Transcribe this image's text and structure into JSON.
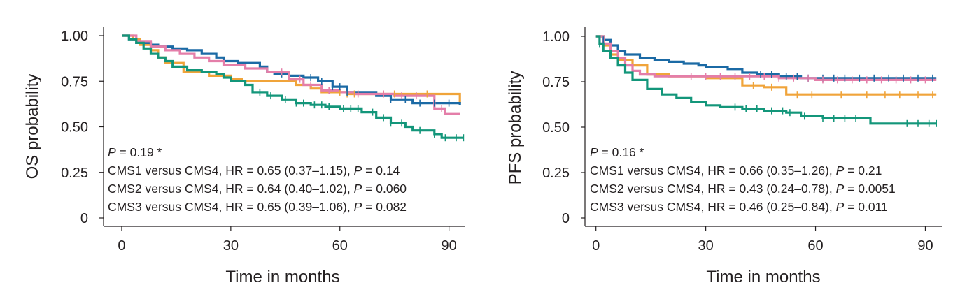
{
  "colors": {
    "CMS1": "#f0a43a",
    "CMS2": "#1b6aa5",
    "CMS3": "#e47ea9",
    "CMS4": "#13967a",
    "axis": "#231f20"
  },
  "chart_data": [
    {
      "type": "line",
      "subtype": "kaplan-meier",
      "title": "",
      "xlabel": "Time in months",
      "ylabel": "OS probability",
      "xlim": [
        -5,
        94.5
      ],
      "ylim": [
        0,
        1
      ],
      "xticks": [
        0,
        30,
        60,
        90
      ],
      "xtick_labels": [
        "0",
        "30",
        "60",
        "90"
      ],
      "yticks": [
        0,
        0.25,
        0.5,
        0.75,
        1.0
      ],
      "ytick_labels": [
        "0",
        "0.25",
        "0.50",
        "0.75",
        "1.00"
      ],
      "annotation": {
        "p_label": "P",
        "p_value": " = 0.19 *",
        "hr_lines": [
          {
            "text": "CMS1 versus CMS4, HR = 0.65 (0.37–1.15), ",
            "p_label": "P",
            "p_value": " = 0.14"
          },
          {
            "text": "CMS2 versus CMS4, HR = 0.64 (0.40–1.02), ",
            "p_label": "P",
            "p_value": " = 0.060"
          },
          {
            "text": "CMS3 versus CMS4, HR = 0.65 (0.39–1.06), ",
            "p_label": "P",
            "p_value": " = 0.082"
          }
        ]
      },
      "series": [
        {
          "name": "CMS1",
          "color_key": "CMS1",
          "x": [
            0,
            3,
            5,
            8,
            10,
            12,
            17,
            24,
            28,
            30,
            33,
            46,
            48,
            52,
            55,
            62,
            66,
            70,
            78,
            84,
            90,
            93
          ],
          "y": [
            1.0,
            0.98,
            0.95,
            0.92,
            0.88,
            0.85,
            0.8,
            0.78,
            0.78,
            0.76,
            0.75,
            0.75,
            0.73,
            0.71,
            0.69,
            0.68,
            0.68,
            0.68,
            0.68,
            0.68,
            0.68,
            0.63
          ],
          "censor_x": [
            60,
            62,
            64,
            72,
            75,
            84
          ]
        },
        {
          "name": "CMS2",
          "color_key": "CMS2",
          "x": [
            0,
            2,
            4,
            8,
            10,
            12,
            14,
            18,
            22,
            26,
            28,
            32,
            38,
            40,
            42,
            46,
            50,
            54,
            58,
            62,
            70,
            74,
            80,
            86,
            90,
            93
          ],
          "y": [
            1.0,
            0.98,
            0.96,
            0.95,
            0.94,
            0.94,
            0.93,
            0.92,
            0.9,
            0.88,
            0.86,
            0.85,
            0.83,
            0.8,
            0.79,
            0.78,
            0.77,
            0.75,
            0.72,
            0.69,
            0.67,
            0.65,
            0.63,
            0.63,
            0.63,
            0.62
          ],
          "censor_x": [
            44,
            52,
            55,
            58,
            60,
            62,
            74,
            78,
            82,
            86,
            90
          ]
        },
        {
          "name": "CMS3",
          "color_key": "CMS3",
          "x": [
            0,
            4,
            8,
            12,
            16,
            20,
            24,
            28,
            34,
            40,
            46,
            50,
            55,
            60,
            64,
            70,
            75,
            84,
            86,
            89,
            93
          ],
          "y": [
            1.0,
            0.97,
            0.94,
            0.92,
            0.9,
            0.88,
            0.86,
            0.84,
            0.82,
            0.8,
            0.76,
            0.73,
            0.7,
            0.69,
            0.68,
            0.68,
            0.67,
            0.67,
            0.6,
            0.57,
            0.57
          ],
          "censor_x": [
            44,
            49,
            52,
            57,
            65,
            72,
            77,
            81,
            88
          ]
        },
        {
          "name": "CMS4",
          "color_key": "CMS4",
          "x": [
            0,
            2,
            4,
            6,
            8,
            10,
            12,
            14,
            18,
            22,
            26,
            28,
            30,
            34,
            36,
            40,
            44,
            48,
            52,
            56,
            60,
            64,
            66,
            70,
            74,
            78,
            80,
            84,
            86,
            88,
            92,
            94
          ],
          "y": [
            1.0,
            0.98,
            0.96,
            0.93,
            0.9,
            0.88,
            0.86,
            0.83,
            0.81,
            0.8,
            0.79,
            0.77,
            0.75,
            0.73,
            0.69,
            0.67,
            0.65,
            0.63,
            0.62,
            0.61,
            0.6,
            0.6,
            0.58,
            0.55,
            0.52,
            0.5,
            0.48,
            0.48,
            0.46,
            0.44,
            0.44,
            0.44
          ],
          "censor_x": [
            38,
            41,
            45,
            48,
            50,
            53,
            55,
            57,
            61,
            63,
            65,
            69,
            72,
            74,
            77,
            82,
            86,
            89,
            92,
            94
          ]
        }
      ]
    },
    {
      "type": "line",
      "subtype": "kaplan-meier",
      "title": "",
      "xlabel": "Time in months",
      "ylabel": "PFS probability",
      "xlim": [
        -3,
        94.5
      ],
      "ylim": [
        0,
        1
      ],
      "xticks": [
        0,
        30,
        60,
        90
      ],
      "xtick_labels": [
        "0",
        "30",
        "60",
        "90"
      ],
      "yticks": [
        0,
        0.25,
        0.5,
        0.75,
        1.0
      ],
      "ytick_labels": [
        "0",
        "0.25",
        "0.50",
        "0.75",
        "1.00"
      ],
      "annotation": {
        "p_label": "P",
        "p_value": " = 0.16 *",
        "hr_lines": [
          {
            "text": "CMS1 versus CMS4, HR = 0.66 (0.35–1.26), ",
            "p_label": "P",
            "p_value": " = 0.21"
          },
          {
            "text": "CMS2 versus CMS4, HR = 0.43 (0.24–0.78), ",
            "p_label": "P",
            "p_value": " = 0.0051"
          },
          {
            "text": "CMS3 versus CMS4, HR = 0.46 (0.25–0.84), ",
            "p_label": "P",
            "p_value": " = 0.011"
          }
        ]
      },
      "series": [
        {
          "name": "CMS1",
          "color_key": "CMS1",
          "x": [
            0,
            2,
            4,
            6,
            10,
            14,
            20,
            30,
            38,
            40,
            46,
            52,
            56,
            70,
            80,
            93
          ],
          "y": [
            1.0,
            0.95,
            0.9,
            0.87,
            0.84,
            0.79,
            0.78,
            0.77,
            0.77,
            0.73,
            0.72,
            0.68,
            0.68,
            0.68,
            0.68,
            0.68
          ],
          "censor_x": [
            43,
            48,
            55,
            59,
            67,
            74,
            79,
            83,
            88,
            92
          ]
        },
        {
          "name": "CMS2",
          "color_key": "CMS2",
          "x": [
            0,
            2,
            4,
            6,
            8,
            12,
            16,
            20,
            24,
            28,
            30,
            36,
            40,
            44,
            50,
            56,
            70,
            80,
            93
          ],
          "y": [
            1.0,
            0.98,
            0.95,
            0.92,
            0.9,
            0.88,
            0.87,
            0.86,
            0.85,
            0.84,
            0.83,
            0.82,
            0.8,
            0.79,
            0.78,
            0.77,
            0.77,
            0.77,
            0.77
          ],
          "censor_x": [
            2,
            45,
            48,
            52,
            55,
            58,
            62,
            65,
            68,
            72,
            76,
            80,
            84,
            88,
            92
          ]
        },
        {
          "name": "CMS3",
          "color_key": "CMS3",
          "x": [
            0,
            2,
            4,
            6,
            8,
            10,
            12,
            16,
            20,
            30,
            40,
            50,
            60,
            70,
            80,
            93
          ],
          "y": [
            1.0,
            0.96,
            0.92,
            0.88,
            0.84,
            0.81,
            0.79,
            0.78,
            0.78,
            0.78,
            0.78,
            0.77,
            0.76,
            0.76,
            0.76,
            0.76
          ],
          "censor_x": [
            26,
            30,
            34,
            38,
            42,
            46,
            50,
            54,
            58,
            62,
            66,
            70,
            74,
            78,
            82,
            86,
            90
          ]
        },
        {
          "name": "CMS4",
          "color_key": "CMS4",
          "x": [
            0,
            1,
            2,
            4,
            6,
            8,
            10,
            14,
            18,
            22,
            26,
            30,
            34,
            40,
            46,
            52,
            56,
            62,
            66,
            70,
            75,
            84,
            93
          ],
          "y": [
            1.0,
            0.96,
            0.92,
            0.88,
            0.84,
            0.8,
            0.76,
            0.71,
            0.68,
            0.66,
            0.64,
            0.62,
            0.61,
            0.6,
            0.59,
            0.58,
            0.56,
            0.55,
            0.55,
            0.55,
            0.52,
            0.52,
            0.52
          ],
          "censor_x": [
            1,
            38,
            41,
            44,
            48,
            51,
            53,
            57,
            62,
            65,
            68,
            71,
            85,
            88,
            91,
            93
          ]
        }
      ]
    }
  ]
}
